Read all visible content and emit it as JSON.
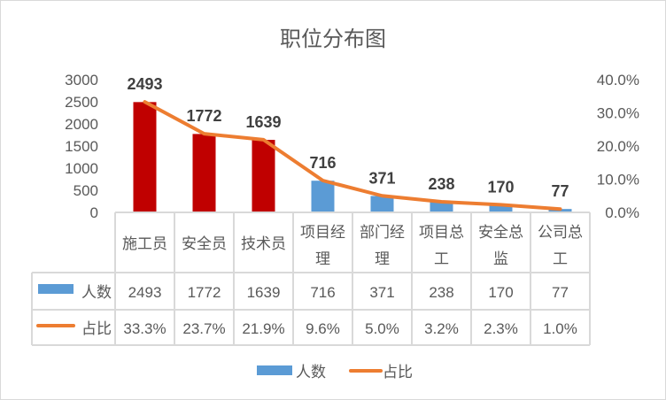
{
  "chart_data": {
    "type": "bar+line",
    "title": "职位分布图",
    "categories": [
      [
        "施工员"
      ],
      [
        "安全员"
      ],
      [
        "技术员"
      ],
      [
        "项目经",
        "理"
      ],
      [
        "部门经",
        "理"
      ],
      [
        "项目总",
        "工"
      ],
      [
        "安全总",
        "监"
      ],
      [
        "公司总",
        "工"
      ]
    ],
    "series": [
      {
        "name": "人数",
        "type": "bar",
        "axis": "left",
        "values": [
          2493,
          1772,
          1639,
          716,
          371,
          238,
          170,
          77
        ],
        "labels": [
          "2493",
          "1772",
          "1639",
          "716",
          "371",
          "238",
          "170",
          "77"
        ],
        "colors": [
          "#C00000",
          "#C00000",
          "#C00000",
          "#5B9BD5",
          "#5B9BD5",
          "#5B9BD5",
          "#5B9BD5",
          "#5B9BD5"
        ]
      },
      {
        "name": "占比",
        "type": "line",
        "axis": "right",
        "values": [
          33.3,
          23.7,
          21.9,
          9.6,
          5.0,
          3.2,
          2.3,
          1.0
        ],
        "labels": [
          "33.3%",
          "23.7%",
          "21.9%",
          "9.6%",
          "5.0%",
          "3.2%",
          "2.3%",
          "1.0%"
        ],
        "color": "#ED7D31"
      }
    ],
    "left_axis": {
      "ylim": [
        0,
        3000
      ],
      "ticks": [
        "0",
        "500",
        "1000",
        "1500",
        "2000",
        "2500",
        "3000"
      ]
    },
    "right_axis": {
      "ylim": [
        0,
        40
      ],
      "ticks": [
        "0.0%",
        "10.0%",
        "20.0%",
        "30.0%",
        "40.0%"
      ]
    },
    "legend": {
      "position": "bottom",
      "items": [
        "人数",
        "占比"
      ]
    },
    "data_table": true,
    "grid": false
  }
}
